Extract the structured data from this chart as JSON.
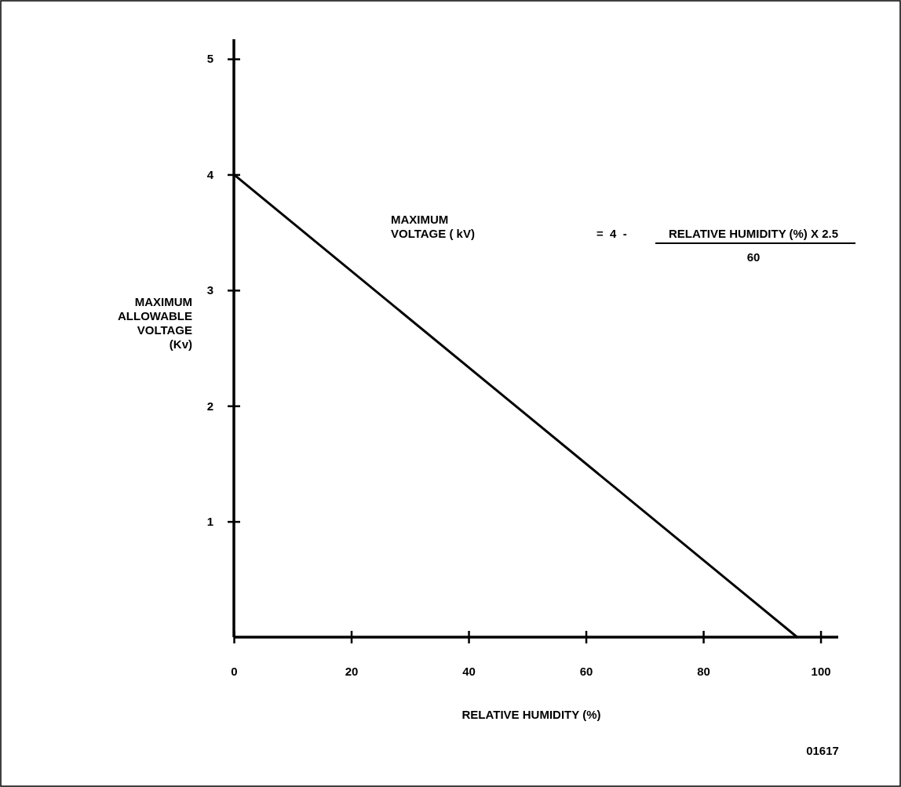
{
  "chart_data": {
    "type": "line",
    "xlabel": "RELATIVE HUMIDITY (%)",
    "ylabel": "MAXIMUM ALLOWABLE VOLTAGE (Kv)",
    "x": [
      0,
      96
    ],
    "series": [
      {
        "color": "#000000",
        "values": [
          4,
          0
        ]
      }
    ],
    "xlim": [
      0,
      103
    ],
    "ylim": [
      0,
      5.17
    ],
    "xticks": [
      0,
      20,
      40,
      60,
      80,
      100
    ],
    "yticks": [
      1,
      2,
      3,
      4,
      5
    ],
    "grid": false,
    "marker": "none",
    "line_style": "solid",
    "annotations": [
      "MAXIMUM VOLTAGE ( kV)",
      "=  4  -",
      "RELATIVE HUMIDITY (%) X 2.5",
      "60",
      "01617"
    ]
  }
}
